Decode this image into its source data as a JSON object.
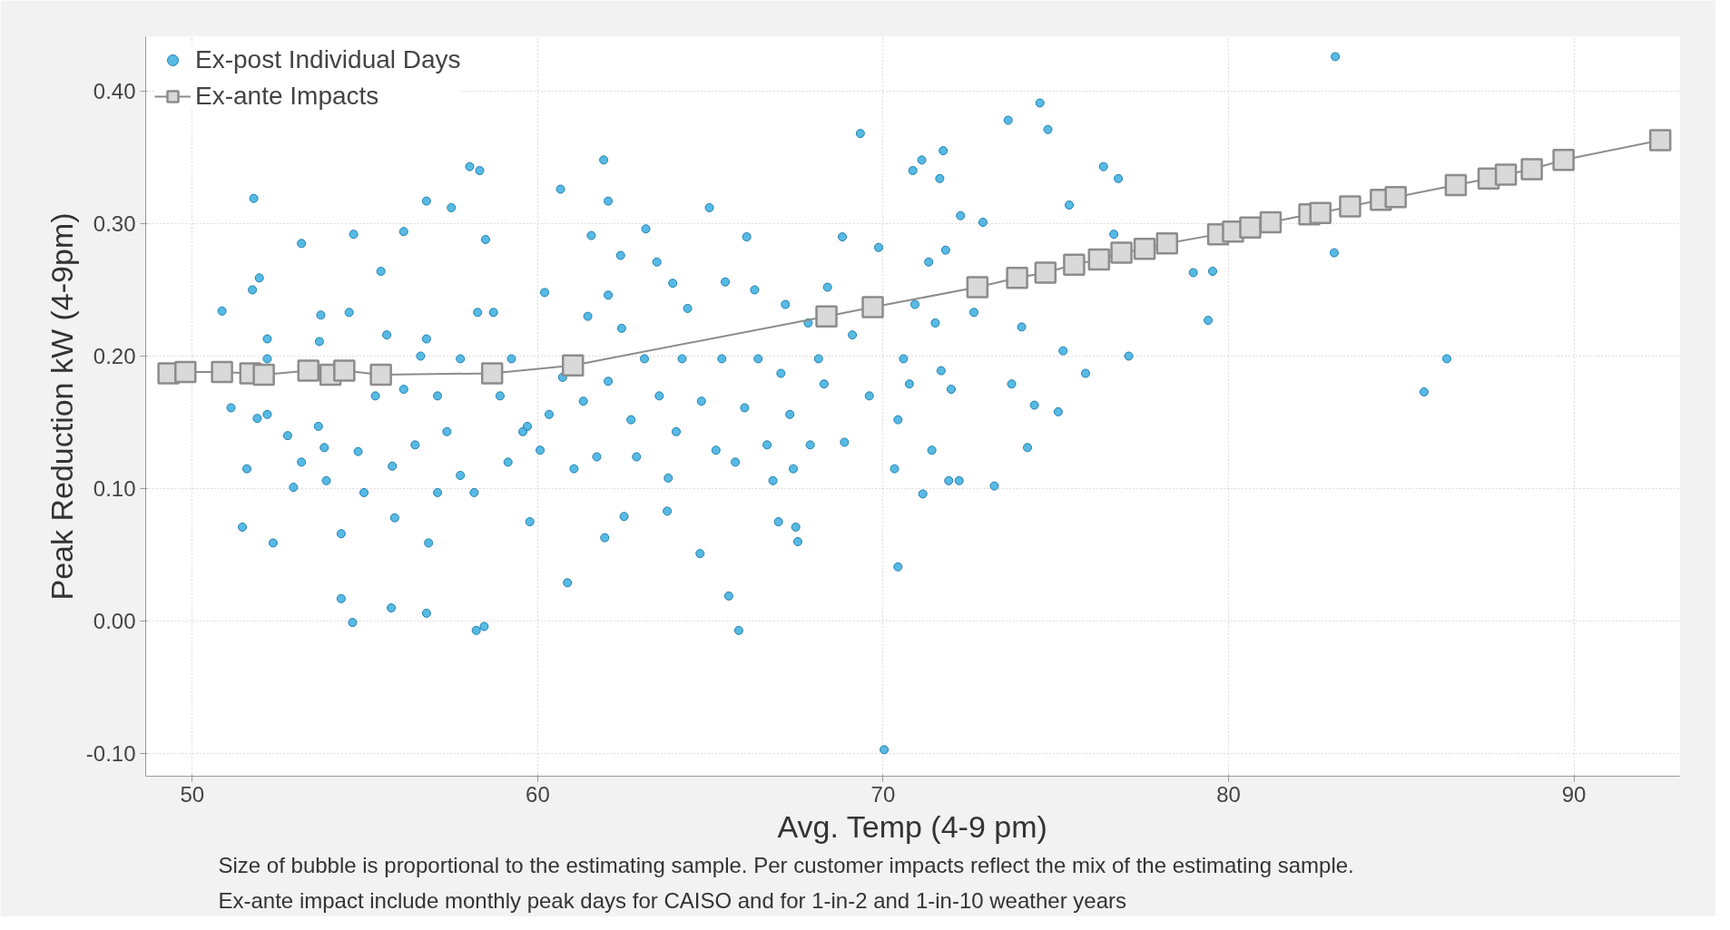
{
  "chart_data": {
    "type": "scatter",
    "xlabel": "Avg. Temp (4-9 pm)",
    "ylabel": "Peak Reduction kW (4-9pm)",
    "xlim": [
      48.65,
      93.06
    ],
    "ylim": [
      -0.117,
      0.441
    ],
    "xticks": [
      50,
      60,
      70,
      80,
      90
    ],
    "yticks": [
      {
        "value": -0.1,
        "label": "-0.10"
      },
      {
        "value": 0,
        "label": "0.00"
      },
      {
        "value": 0.1,
        "label": "0.10"
      },
      {
        "value": 0.2,
        "label": "0.20"
      },
      {
        "value": 0.3,
        "label": "0.30"
      },
      {
        "value": 0.4,
        "label": "0.40"
      }
    ],
    "grid": true,
    "legend": "top left",
    "annotations": [
      "Size of bubble is proportional to the estimating sample. Per customer impacts reflect the mix of the estimating sample.",
      "Ex-ante impact include monthly peak days for CAISO and for 1-in-2 and 1-in-10 weather years"
    ],
    "series": [
      {
        "name": "Ex-post Individual Days",
        "marker": "circle",
        "color": "#3aaee0",
        "x": [
          51.45,
          51.78,
          51.74,
          51.94,
          52.17,
          51.88,
          52.34,
          53.16,
          52.93,
          53.68,
          53.72,
          54.31,
          54.54,
          54.67,
          54.31,
          54.64,
          55.46,
          55.76,
          56.12,
          56.78,
          56.78,
          56.78,
          57.5,
          56.84,
          58.03,
          58.32,
          58.49,
          58.22,
          58.45,
          58.26,
          58.72,
          59.77,
          60.66,
          60.86,
          61.91,
          62.04,
          61.55,
          62.04,
          62.4,
          62.5,
          61.94,
          63.13,
          63.45,
          63.78,
          63.75,
          64.97,
          64.7,
          65.53,
          65.82,
          65.43,
          66.28,
          66.97,
          67.47,
          67.53,
          68.39,
          69.34,
          68.82,
          70.03,
          70.43,
          70.33,
          70.86,
          71.12,
          71.74,
          71.64,
          71.15,
          71.9,
          72.2,
          73.22,
          73.62,
          74.54,
          74.77,
          74.18,
          74.38,
          75.07,
          74.01,
          75.39,
          76.38,
          76.81,
          77.11,
          78.98,
          79.54,
          79.41,
          83.09,
          83.06,
          86.32,
          85.66,
          75.86,
          76.68,
          75.21,
          73.72,
          72.89,
          72.24,
          51.12,
          52.17,
          52.76,
          53.65,
          53.82,
          53.88,
          54.8,
          54.97,
          55.3,
          55.79,
          56.12,
          56.45,
          56.61,
          57.1,
          57.37,
          57.76,
          58.16,
          57.76,
          58.91,
          59.14,
          59.24,
          59.57,
          60.07,
          60.33,
          60.72,
          61.05,
          61.32,
          61.71,
          62.04,
          62.43,
          62.7,
          63.09,
          63.52,
          64.01,
          64.18,
          64.34,
          64.74,
          65.16,
          65.33,
          65.72,
          65.99,
          66.38,
          66.64,
          66.81,
          67.04,
          67.3,
          67.4,
          67.89,
          68.13,
          68.29,
          68.88,
          69.11,
          69.6,
          69.87,
          70.43,
          70.59,
          70.76,
          70.92,
          71.32,
          71.41,
          71.51,
          71.68,
          71.81,
          71.97,
          72.63,
          50.86,
          51.58,
          52.17,
          53.16,
          55.63,
          55.86,
          57.1,
          59.7,
          60.2,
          61.45,
          62.86,
          63.91,
          66.05,
          67.17,
          67.83
        ],
        "values": [
          0.071,
          0.319,
          0.25,
          0.259,
          0.213,
          0.153,
          0.059,
          0.285,
          0.101,
          0.211,
          0.231,
          0.066,
          0.233,
          0.292,
          0.017,
          -0.001,
          0.264,
          0.01,
          0.294,
          0.213,
          0.006,
          0.317,
          0.312,
          0.059,
          0.343,
          0.34,
          0.288,
          -0.007,
          -0.004,
          0.233,
          0.233,
          0.075,
          0.326,
          0.029,
          0.348,
          0.317,
          0.291,
          0.246,
          0.276,
          0.079,
          0.063,
          0.296,
          0.271,
          0.108,
          0.083,
          0.312,
          0.051,
          0.019,
          -0.007,
          0.256,
          0.25,
          0.075,
          0.071,
          0.06,
          0.252,
          0.368,
          0.29,
          -0.097,
          0.041,
          0.115,
          0.34,
          0.348,
          0.355,
          0.334,
          0.096,
          0.106,
          0.106,
          0.102,
          0.378,
          0.391,
          0.371,
          0.131,
          0.163,
          0.158,
          0.222,
          0.314,
          0.343,
          0.334,
          0.2,
          0.263,
          0.264,
          0.227,
          0.426,
          0.278,
          0.198,
          0.173,
          0.187,
          0.292,
          0.204,
          0.179,
          0.301,
          0.306,
          0.161,
          0.156,
          0.14,
          0.147,
          0.131,
          0.106,
          0.128,
          0.097,
          0.17,
          0.117,
          0.175,
          0.133,
          0.2,
          0.17,
          0.143,
          0.11,
          0.097,
          0.198,
          0.17,
          0.12,
          0.198,
          0.143,
          0.129,
          0.156,
          0.184,
          0.115,
          0.166,
          0.124,
          0.181,
          0.221,
          0.152,
          0.198,
          0.17,
          0.143,
          0.198,
          0.236,
          0.166,
          0.129,
          0.198,
          0.12,
          0.161,
          0.198,
          0.133,
          0.106,
          0.187,
          0.156,
          0.115,
          0.133,
          0.198,
          0.179,
          0.135,
          0.216,
          0.17,
          0.282,
          0.152,
          0.198,
          0.179,
          0.239,
          0.271,
          0.129,
          0.225,
          0.189,
          0.28,
          0.175,
          0.233,
          0.234,
          0.115,
          0.198,
          0.12,
          0.216,
          0.078,
          0.097,
          0.147,
          0.248,
          0.23,
          0.124,
          0.255,
          0.29,
          0.239,
          0.225
        ]
      },
      {
        "name": "Ex-ante Impacts",
        "type": "line",
        "marker": "square",
        "color": "#8c8c8c",
        "x": [
          49.31,
          49.8,
          50.86,
          51.68,
          52.07,
          53.36,
          54.0,
          54.4,
          55.46,
          58.68,
          61.02,
          68.36,
          69.7,
          72.73,
          73.88,
          74.7,
          75.53,
          76.25,
          76.9,
          77.57,
          78.22,
          79.7,
          80.13,
          80.63,
          81.22,
          82.34,
          82.66,
          83.52,
          84.41,
          84.84,
          86.58,
          87.53,
          88.03,
          88.78,
          89.7,
          92.5
        ],
        "values": [
          0.187,
          0.188,
          0.188,
          0.187,
          0.186,
          0.189,
          0.186,
          0.189,
          0.186,
          0.187,
          0.193,
          0.23,
          0.237,
          0.252,
          0.259,
          0.263,
          0.269,
          0.273,
          0.278,
          0.281,
          0.285,
          0.292,
          0.294,
          0.297,
          0.301,
          0.307,
          0.308,
          0.313,
          0.318,
          0.32,
          0.329,
          0.334,
          0.337,
          0.341,
          0.348,
          0.363
        ]
      }
    ]
  }
}
